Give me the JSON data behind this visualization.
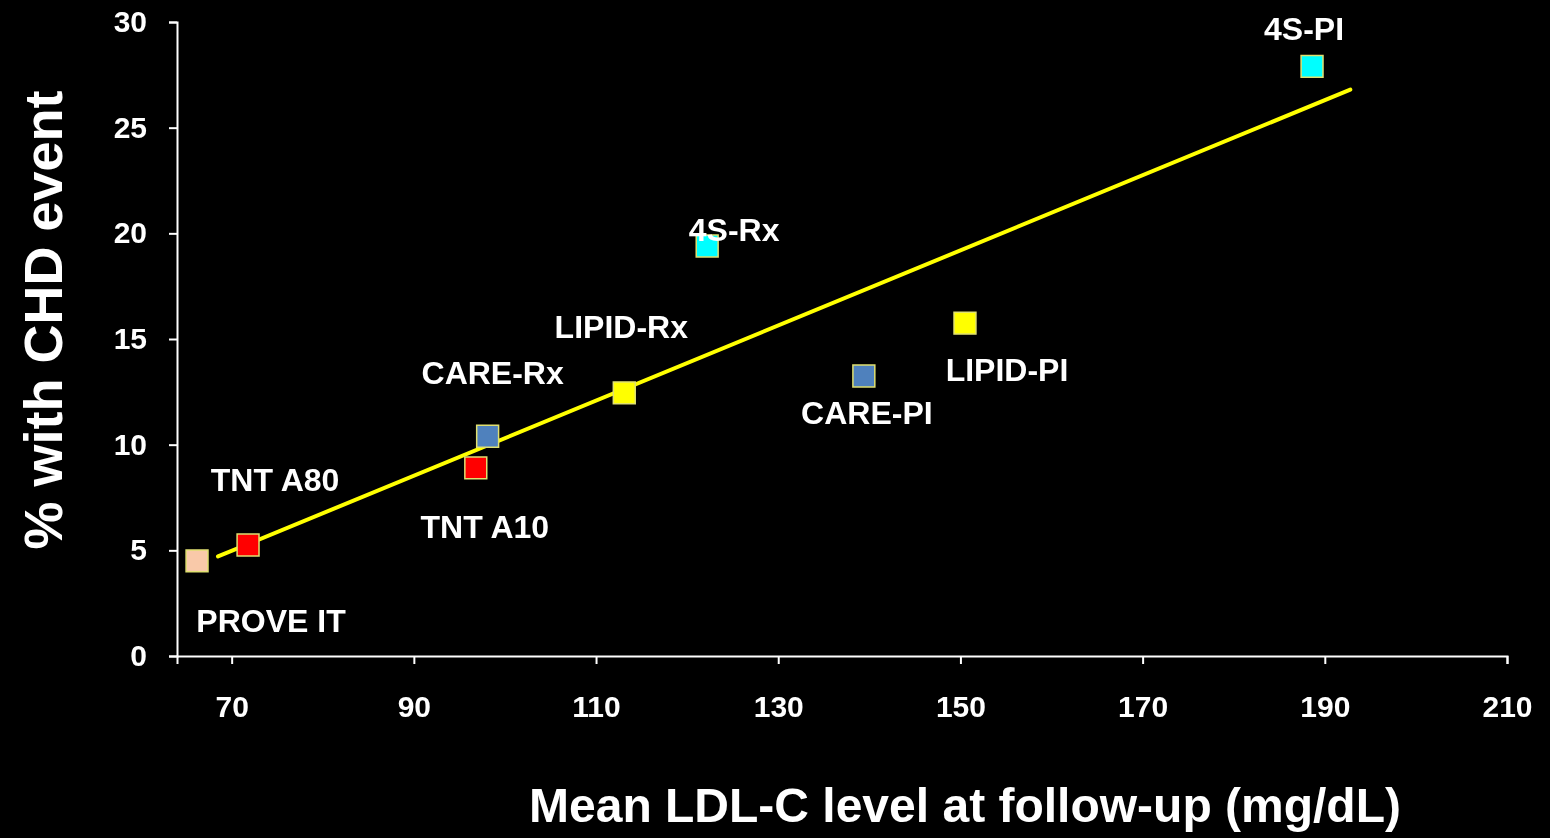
{
  "chart_data": {
    "type": "scatter",
    "xlabel": "Mean LDL-C level at follow-up (mg/dL)",
    "ylabel": "% with CHD event",
    "xlim": [
      64,
      210
    ],
    "xticks": [
      70,
      90,
      110,
      130,
      150,
      170,
      190,
      210
    ],
    "ylim": [
      0,
      30
    ],
    "yticks": [
      0,
      5,
      10,
      15,
      20,
      25,
      30
    ],
    "grid": false,
    "series": [
      {
        "marker": "square",
        "x": [
          66.2,
          71.8,
          96.8,
          98.1,
          113.1,
          122.2,
          139.4,
          150.5,
          188.6
        ],
        "values": [
          4.5,
          5.25,
          8.9,
          10.4,
          12.45,
          19.4,
          13.25,
          15.75,
          27.9
        ],
        "colors": [
          "#f9c9a9",
          "#ff0000",
          "#ff0000",
          "#4f81bd",
          "#ffff00",
          "#00ffff",
          "#4f81bd",
          "#ffff00",
          "#00ffff"
        ]
      },
      {
        "type": "line",
        "x": [
          68.5,
          192.8
        ],
        "values": [
          4.71,
          26.8
        ],
        "color": "#ffff00",
        "line_style": "solid"
      }
    ],
    "annotations": [
      {
        "text": "PROVE IT",
        "x": 66.2,
        "y": 4.5
      },
      {
        "text": "TNT A80",
        "x": 71.8,
        "y": 5.25
      },
      {
        "text": "TNT A10",
        "x": 96.8,
        "y": 8.9
      },
      {
        "text": "CARE-Rx",
        "x": 98.1,
        "y": 10.4
      },
      {
        "text": "LIPID-Rx",
        "x": 113.1,
        "y": 12.45
      },
      {
        "text": "4S-Rx",
        "x": 122.2,
        "y": 19.4
      },
      {
        "text": "CARE-PI",
        "x": 139.4,
        "y": 13.25
      },
      {
        "text": "LIPID-PI",
        "x": 150.5,
        "y": 15.75
      },
      {
        "text": "4S-PI",
        "x": 188.6,
        "y": 27.9
      }
    ]
  }
}
